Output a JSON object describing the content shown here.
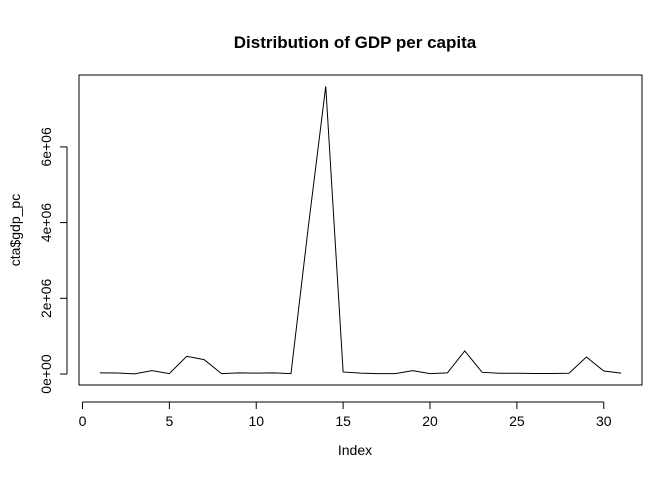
{
  "chart_data": {
    "type": "line",
    "title": "Distribution of GDP per capita",
    "xlabel": "Index",
    "ylabel": "cta$gdp_pc",
    "x": [
      1,
      2,
      3,
      4,
      5,
      6,
      7,
      8,
      9,
      10,
      11,
      12,
      13,
      14,
      15,
      16,
      17,
      18,
      19,
      20,
      21,
      22,
      23,
      24,
      25,
      26,
      27,
      28,
      29,
      30,
      31
    ],
    "series": [
      {
        "values": [
          30000,
          28000,
          5000,
          90000,
          10000,
          470000,
          380000,
          10000,
          30000,
          25000,
          30000,
          10000,
          3900000,
          7600000,
          55000,
          25000,
          10000,
          10000,
          90000,
          10000,
          30000,
          610000,
          45000,
          20000,
          20000,
          15000,
          15000,
          20000,
          450000,
          80000,
          25000
        ]
      }
    ],
    "xlim": [
      0,
      31
    ],
    "ylim": [
      -290000,
      7900000
    ],
    "xticks": [
      0,
      5,
      10,
      15,
      20,
      25,
      30
    ],
    "xtick_labels": [
      "0",
      "5",
      "10",
      "15",
      "20",
      "25",
      "30"
    ],
    "yticks": [
      0,
      2000000,
      4000000,
      6000000
    ],
    "ytick_labels": [
      "0e+00",
      "2e+06",
      "4e+06",
      "6e+06"
    ],
    "grid": false,
    "line_color": "#000000"
  }
}
